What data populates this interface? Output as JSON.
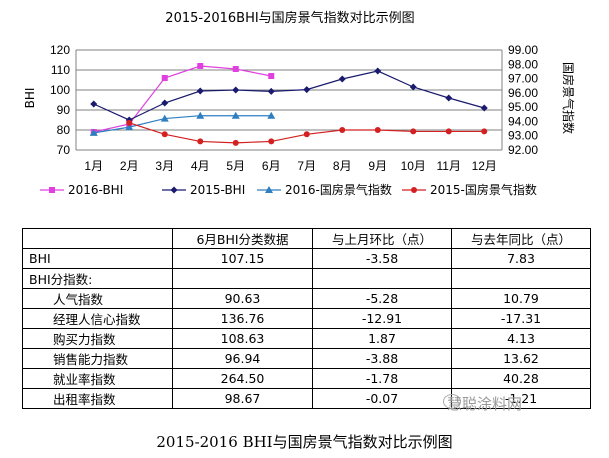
{
  "chart_data": {
    "type": "line",
    "title": "2015-2016BHI与国房景气指数对比示例图",
    "x": [
      "1月",
      "2月",
      "3月",
      "4月",
      "5月",
      "6月",
      "7月",
      "8月",
      "9月",
      "10月",
      "11月",
      "12月"
    ],
    "ylabel": "BHI",
    "y2label": "国房景气指数",
    "ylim": [
      70,
      120
    ],
    "yticks": [
      "120",
      "110",
      "100",
      "90",
      "80",
      "70"
    ],
    "y2lim": [
      92.0,
      99.0
    ],
    "y2ticks": [
      "99.00",
      "98.00",
      "97.00",
      "96.00",
      "95.00",
      "94.00",
      "93.00",
      "92.00"
    ],
    "grid": "horizontal",
    "legend": "bottom",
    "series": [
      {
        "name": "2016-BHI",
        "axis": "left",
        "color": "#e040e0",
        "marker": "square",
        "values": [
          79,
          83,
          106,
          112,
          110.5,
          107,
          null,
          null,
          null,
          null,
          null,
          null
        ]
      },
      {
        "name": "2015-BHI",
        "axis": "left",
        "color": "#1a1a6e",
        "marker": "diamond",
        "values": [
          93,
          85,
          93.5,
          99.5,
          100,
          99.3,
          100.2,
          105.5,
          109.5,
          101.5,
          96,
          91
        ]
      },
      {
        "name": "2016-国房景气指数",
        "axis": "right",
        "color": "#2f7fc0",
        "marker": "triangle",
        "values": [
          93.2,
          93.6,
          94.2,
          94.4,
          94.4,
          94.4,
          null,
          null,
          null,
          null,
          null,
          null
        ]
      },
      {
        "name": "2015-国房景气指数",
        "axis": "right",
        "color": "#d42020",
        "marker": "circle",
        "values": [
          null,
          93.9,
          93.1,
          92.6,
          92.5,
          92.6,
          93.1,
          93.4,
          93.4,
          93.3,
          93.3,
          93.3
        ]
      }
    ]
  },
  "table": {
    "headers": [
      "",
      "6月BHI分类数据",
      "与上月环比（点）",
      "与去年同比（点）"
    ],
    "rows": [
      {
        "label": "BHI",
        "v1": "107.15",
        "v2": "-3.58",
        "v3": "7.83",
        "kind": "lbl"
      },
      {
        "label": "BHI分指数:",
        "v1": "",
        "v2": "",
        "v3": "",
        "kind": "lbl"
      },
      {
        "label": "人气指数",
        "v1": "90.63",
        "v2": "-5.28",
        "v3": "10.79",
        "kind": "sub"
      },
      {
        "label": "经理人信心指数",
        "v1": "136.76",
        "v2": "-12.91",
        "v3": "-17.31",
        "kind": "sub"
      },
      {
        "label": "购买力指数",
        "v1": "108.63",
        "v2": "1.87",
        "v3": "4.13",
        "kind": "sub"
      },
      {
        "label": "销售能力指数",
        "v1": "96.94",
        "v2": "-3.88",
        "v3": "13.62",
        "kind": "sub"
      },
      {
        "label": "就业率指数",
        "v1": "264.50",
        "v2": "-1.78",
        "v3": "40.28",
        "kind": "sub"
      },
      {
        "label": "出租率指数",
        "v1": "98.67",
        "v2": "-0.07",
        "v3": "-1.21",
        "kind": "sub"
      }
    ]
  },
  "watermark": "慧聪涂料网",
  "caption": "2015-2016 BHI与国房景气指数对比示例图"
}
